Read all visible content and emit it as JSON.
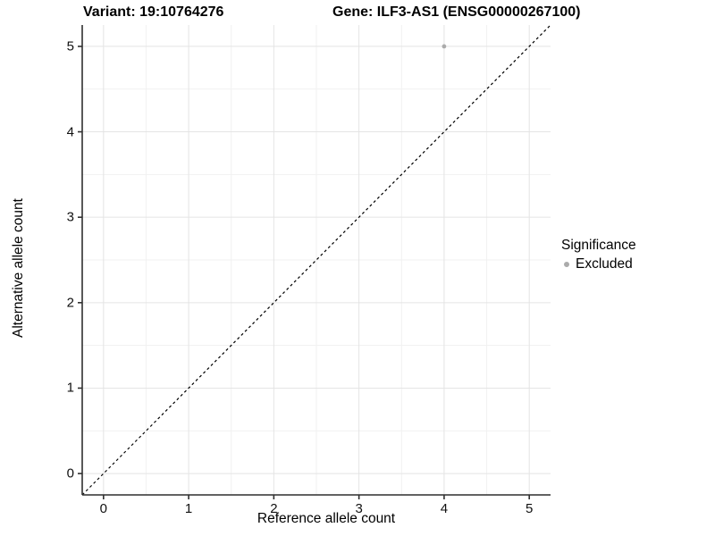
{
  "titles": {
    "variant": "Variant: 19:10764276",
    "gene": "Gene: ILF3-AS1 (ENSG00000267100)"
  },
  "chart_data": {
    "type": "scatter",
    "title_left": "Variant: 19:10764276",
    "title_right": "Gene: ILF3-AS1 (ENSG00000267100)",
    "xlabel": "Reference allele count",
    "ylabel": "Alternative allele count",
    "xlim": [
      -0.25,
      5.25
    ],
    "ylim": [
      -0.25,
      5.25
    ],
    "x_ticks": [
      0,
      1,
      2,
      3,
      4,
      5
    ],
    "y_ticks": [
      0,
      1,
      2,
      3,
      4,
      5
    ],
    "minor_ticks": [
      0.5,
      1.5,
      2.5,
      3.5,
      4.5
    ],
    "grid": {
      "major": true,
      "minor": true
    },
    "reference_line": {
      "kind": "identity",
      "from": [
        -0.25,
        -0.25
      ],
      "to": [
        5.25,
        5.25
      ],
      "style": "dashed",
      "color": "#000000"
    },
    "series": [
      {
        "name": "Excluded",
        "color": "#ababab",
        "points": [
          [
            4,
            5
          ]
        ]
      }
    ],
    "legend": {
      "title": "Significance",
      "position": "right",
      "entries": [
        {
          "label": "Excluded",
          "color": "#ababab"
        }
      ]
    }
  },
  "colors": {
    "background": "#ffffff",
    "grid_major": "#e4e4e4",
    "grid_minor": "#f1f1f1",
    "axis_line": "#2f2f2f",
    "tick_mark": "#2f2f2f",
    "text": "#000000",
    "point": "#ababab"
  }
}
